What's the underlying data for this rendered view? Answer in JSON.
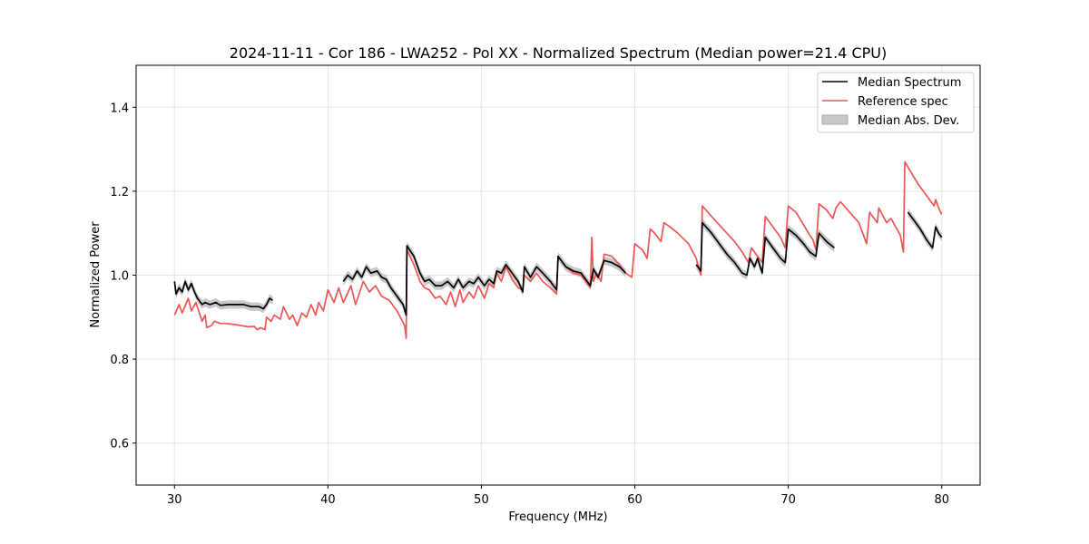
{
  "chart_data": {
    "type": "line",
    "title": "2024-11-11 - Cor 186 - LWA252 - Pol XX - Normalized Spectrum (Median power=21.4 CPU)",
    "xlabel": "Frequency (MHz)",
    "ylabel": "Normalized Power",
    "xlim": [
      27.5,
      82.5
    ],
    "ylim": [
      0.5,
      1.5
    ],
    "xticks": [
      30,
      40,
      50,
      60,
      70,
      80
    ],
    "yticks": [
      0.6,
      0.8,
      1.0,
      1.2,
      1.4
    ],
    "xtick_labels": [
      "30",
      "40",
      "50",
      "60",
      "70",
      "80"
    ],
    "ytick_labels": [
      "0.6",
      "0.8",
      "1.0",
      "1.2",
      "1.4"
    ],
    "grid": true,
    "legend_position": "top-right",
    "legend": [
      {
        "label": "Median Spectrum",
        "kind": "line",
        "color": "#000000"
      },
      {
        "label": "Reference spec",
        "kind": "line",
        "color": "#ee5555"
      },
      {
        "label": "Median Abs. Dev.",
        "kind": "patch",
        "color": "#c8c8c8"
      }
    ],
    "series": [
      {
        "name": "Reference spec",
        "color": "#ee5555",
        "segments": [
          [
            [
              30.0,
              0.905
            ],
            [
              30.3,
              0.93
            ],
            [
              30.5,
              0.91
            ],
            [
              30.9,
              0.945
            ],
            [
              31.1,
              0.915
            ],
            [
              31.4,
              0.935
            ],
            [
              31.8,
              0.89
            ],
            [
              32.0,
              0.905
            ],
            [
              32.1,
              0.875
            ],
            [
              32.4,
              0.88
            ],
            [
              32.6,
              0.89
            ],
            [
              33.0,
              0.885
            ],
            [
              33.3,
              0.885
            ],
            [
              34.0,
              0.882
            ],
            [
              34.8,
              0.877
            ],
            [
              35.2,
              0.878
            ],
            [
              35.4,
              0.87
            ],
            [
              35.6,
              0.875
            ],
            [
              35.9,
              0.87
            ],
            [
              36.0,
              0.9
            ],
            [
              36.3,
              0.89
            ],
            [
              36.5,
              0.905
            ],
            [
              36.9,
              0.895
            ],
            [
              37.1,
              0.925
            ],
            [
              37.5,
              0.895
            ],
            [
              37.7,
              0.905
            ],
            [
              38.0,
              0.88
            ],
            [
              38.3,
              0.91
            ],
            [
              38.6,
              0.9
            ],
            [
              38.9,
              0.93
            ],
            [
              39.2,
              0.905
            ],
            [
              39.4,
              0.935
            ],
            [
              39.7,
              0.915
            ],
            [
              40.0,
              0.965
            ],
            [
              40.4,
              0.935
            ],
            [
              40.7,
              0.97
            ],
            [
              41.0,
              0.935
            ],
            [
              41.5,
              0.975
            ],
            [
              41.8,
              0.93
            ],
            [
              42.3,
              0.985
            ],
            [
              42.7,
              0.96
            ],
            [
              43.1,
              0.975
            ],
            [
              43.5,
              0.95
            ],
            [
              44.0,
              0.94
            ],
            [
              44.5,
              0.915
            ],
            [
              45.0,
              0.88
            ],
            [
              45.1,
              0.85
            ],
            [
              45.15,
              1.06
            ],
            [
              45.6,
              1.025
            ],
            [
              46.0,
              0.985
            ],
            [
              46.3,
              0.97
            ],
            [
              46.6,
              0.965
            ],
            [
              47.0,
              0.945
            ],
            [
              47.3,
              0.95
            ],
            [
              47.7,
              0.93
            ],
            [
              48.0,
              0.96
            ],
            [
              48.3,
              0.925
            ],
            [
              48.6,
              0.965
            ],
            [
              48.8,
              0.935
            ],
            [
              49.2,
              0.96
            ],
            [
              49.5,
              0.945
            ],
            [
              49.8,
              0.975
            ],
            [
              50.2,
              0.945
            ],
            [
              50.5,
              0.98
            ],
            [
              50.8,
              0.97
            ],
            [
              51.0,
              1.005
            ],
            [
              51.3,
              0.985
            ],
            [
              51.6,
              1.02
            ],
            [
              52.0,
              0.99
            ],
            [
              52.4,
              0.97
            ],
            [
              52.7,
              0.965
            ],
            [
              52.8,
              1.0
            ],
            [
              53.2,
              0.985
            ],
            [
              53.6,
              1.005
            ],
            [
              54.0,
              0.985
            ],
            [
              54.5,
              0.97
            ],
            [
              54.9,
              0.955
            ],
            [
              55.0,
              1.045
            ],
            [
              55.5,
              1.02
            ],
            [
              56.0,
              1.005
            ],
            [
              56.5,
              1.0
            ],
            [
              56.8,
              0.985
            ],
            [
              57.0,
              0.975
            ],
            [
              57.1,
              0.97
            ],
            [
              57.2,
              1.09
            ],
            [
              57.3,
              0.985
            ],
            [
              57.5,
              1.005
            ],
            [
              57.8,
              0.985
            ],
            [
              58.0,
              1.05
            ],
            [
              58.5,
              1.045
            ],
            [
              59.0,
              1.025
            ],
            [
              59.4,
              1.005
            ],
            [
              59.8,
              0.995
            ],
            [
              60.0,
              1.075
            ],
            [
              60.5,
              1.06
            ],
            [
              60.8,
              1.04
            ],
            [
              61.0,
              1.11
            ],
            [
              61.3,
              1.1
            ],
            [
              61.7,
              1.08
            ],
            [
              61.9,
              1.125
            ],
            [
              62.3,
              1.115
            ],
            [
              62.8,
              1.1
            ],
            [
              63.5,
              1.075
            ],
            [
              64.0,
              1.04
            ],
            [
              64.3,
              1.0
            ],
            [
              64.4,
              1.165
            ],
            [
              65.0,
              1.14
            ],
            [
              65.5,
              1.12
            ],
            [
              66.0,
              1.1
            ],
            [
              66.5,
              1.08
            ],
            [
              67.0,
              1.055
            ],
            [
              67.4,
              1.03
            ],
            [
              67.6,
              1.065
            ],
            [
              68.0,
              1.045
            ],
            [
              68.3,
              1.03
            ],
            [
              68.5,
              1.14
            ],
            [
              69.0,
              1.115
            ],
            [
              69.5,
              1.09
            ],
            [
              69.8,
              1.065
            ],
            [
              70.0,
              1.165
            ],
            [
              70.5,
              1.15
            ],
            [
              71.0,
              1.12
            ],
            [
              71.4,
              1.095
            ],
            [
              71.6,
              1.085
            ],
            [
              71.8,
              1.06
            ],
            [
              72.0,
              1.17
            ],
            [
              72.5,
              1.155
            ],
            [
              72.9,
              1.135
            ],
            [
              73.1,
              1.16
            ],
            [
              73.4,
              1.175
            ],
            [
              74.0,
              1.15
            ],
            [
              74.6,
              1.125
            ],
            [
              75.1,
              1.075
            ],
            [
              75.3,
              1.15
            ],
            [
              75.8,
              1.125
            ],
            [
              75.9,
              1.16
            ],
            [
              76.4,
              1.125
            ],
            [
              76.7,
              1.135
            ],
            [
              77.0,
              1.115
            ],
            [
              77.3,
              1.095
            ],
            [
              77.5,
              1.055
            ],
            [
              77.6,
              1.27
            ],
            [
              78.0,
              1.245
            ],
            [
              78.5,
              1.215
            ],
            [
              79.0,
              1.19
            ],
            [
              79.5,
              1.165
            ],
            [
              79.6,
              1.18
            ],
            [
              79.8,
              1.16
            ],
            [
              80.0,
              1.145
            ]
          ]
        ]
      },
      {
        "name": "Median Spectrum",
        "color": "#000000",
        "segments": [
          [
            [
              30.0,
              0.985
            ],
            [
              30.1,
              0.955
            ],
            [
              30.3,
              0.97
            ],
            [
              30.5,
              0.96
            ],
            [
              30.7,
              0.985
            ],
            [
              30.9,
              0.965
            ],
            [
              31.1,
              0.98
            ],
            [
              31.3,
              0.96
            ],
            [
              31.5,
              0.945
            ],
            [
              31.8,
              0.93
            ],
            [
              32.0,
              0.935
            ],
            [
              32.3,
              0.93
            ],
            [
              32.7,
              0.935
            ],
            [
              33.0,
              0.928
            ],
            [
              33.5,
              0.93
            ],
            [
              34.0,
              0.93
            ],
            [
              34.5,
              0.93
            ],
            [
              35.0,
              0.925
            ],
            [
              35.5,
              0.925
            ],
            [
              35.8,
              0.92
            ],
            [
              36.0,
              0.93
            ],
            [
              36.2,
              0.945
            ],
            [
              36.4,
              0.94
            ]
          ],
          [
            [
              41.0,
              0.985
            ],
            [
              41.3,
              1.0
            ],
            [
              41.6,
              0.99
            ],
            [
              41.9,
              1.01
            ],
            [
              42.2,
              0.995
            ],
            [
              42.5,
              1.02
            ],
            [
              42.8,
              1.005
            ],
            [
              43.2,
              1.01
            ],
            [
              43.5,
              0.995
            ],
            [
              43.8,
              0.99
            ],
            [
              44.1,
              0.97
            ],
            [
              44.5,
              0.95
            ],
            [
              44.9,
              0.93
            ],
            [
              45.1,
              0.905
            ],
            [
              45.15,
              1.07
            ],
            [
              45.6,
              1.045
            ],
            [
              46.0,
              1.005
            ],
            [
              46.3,
              0.985
            ],
            [
              46.6,
              0.99
            ],
            [
              47.0,
              0.975
            ],
            [
              47.4,
              0.975
            ],
            [
              47.8,
              0.985
            ],
            [
              48.2,
              0.97
            ],
            [
              48.5,
              0.99
            ],
            [
              48.8,
              0.97
            ],
            [
              49.2,
              0.985
            ],
            [
              49.5,
              0.98
            ],
            [
              49.8,
              0.995
            ],
            [
              50.2,
              0.975
            ],
            [
              50.5,
              0.99
            ],
            [
              50.8,
              0.98
            ],
            [
              51.0,
              1.01
            ],
            [
              51.3,
              1.005
            ],
            [
              51.6,
              1.025
            ],
            [
              52.0,
              1.005
            ],
            [
              52.4,
              0.985
            ],
            [
              52.7,
              0.96
            ],
            [
              52.8,
              1.02
            ],
            [
              53.2,
              0.995
            ],
            [
              53.6,
              1.02
            ],
            [
              54.0,
              1.005
            ],
            [
              54.5,
              0.985
            ],
            [
              54.9,
              0.965
            ],
            [
              55.0,
              1.045
            ],
            [
              55.5,
              1.02
            ],
            [
              56.0,
              1.01
            ],
            [
              56.5,
              1.005
            ],
            [
              56.8,
              0.99
            ],
            [
              57.1,
              0.975
            ],
            [
              57.3,
              1.015
            ],
            [
              57.6,
              0.995
            ],
            [
              58.0,
              1.035
            ],
            [
              58.5,
              1.03
            ],
            [
              59.0,
              1.02
            ],
            [
              59.4,
              1.005
            ]
          ],
          [
            [
              64.0,
              1.025
            ],
            [
              64.3,
              1.01
            ],
            [
              64.4,
              1.125
            ],
            [
              65.0,
              1.1
            ],
            [
              65.5,
              1.075
            ],
            [
              66.0,
              1.05
            ],
            [
              66.5,
              1.03
            ],
            [
              67.0,
              1.005
            ],
            [
              67.3,
              1.0
            ],
            [
              67.5,
              1.04
            ],
            [
              67.8,
              1.02
            ],
            [
              68.0,
              1.04
            ],
            [
              68.3,
              1.005
            ],
            [
              68.5,
              1.09
            ],
            [
              69.0,
              1.065
            ],
            [
              69.5,
              1.04
            ],
            [
              69.8,
              1.03
            ],
            [
              70.0,
              1.11
            ],
            [
              70.5,
              1.095
            ],
            [
              71.0,
              1.075
            ],
            [
              71.4,
              1.055
            ],
            [
              71.6,
              1.05
            ],
            [
              71.8,
              1.045
            ],
            [
              72.0,
              1.1
            ],
            [
              72.5,
              1.08
            ],
            [
              73.0,
              1.065
            ]
          ],
          [
            [
              77.8,
              1.15
            ],
            [
              78.2,
              1.13
            ],
            [
              78.6,
              1.11
            ],
            [
              79.0,
              1.085
            ],
            [
              79.4,
              1.065
            ],
            [
              79.6,
              1.115
            ],
            [
              79.8,
              1.1
            ],
            [
              80.0,
              1.09
            ]
          ]
        ]
      }
    ],
    "mad_band": {
      "name": "Median Abs. Dev.",
      "color": "#c8c8c8",
      "half_width": 0.01,
      "follows": "Median Spectrum"
    }
  }
}
